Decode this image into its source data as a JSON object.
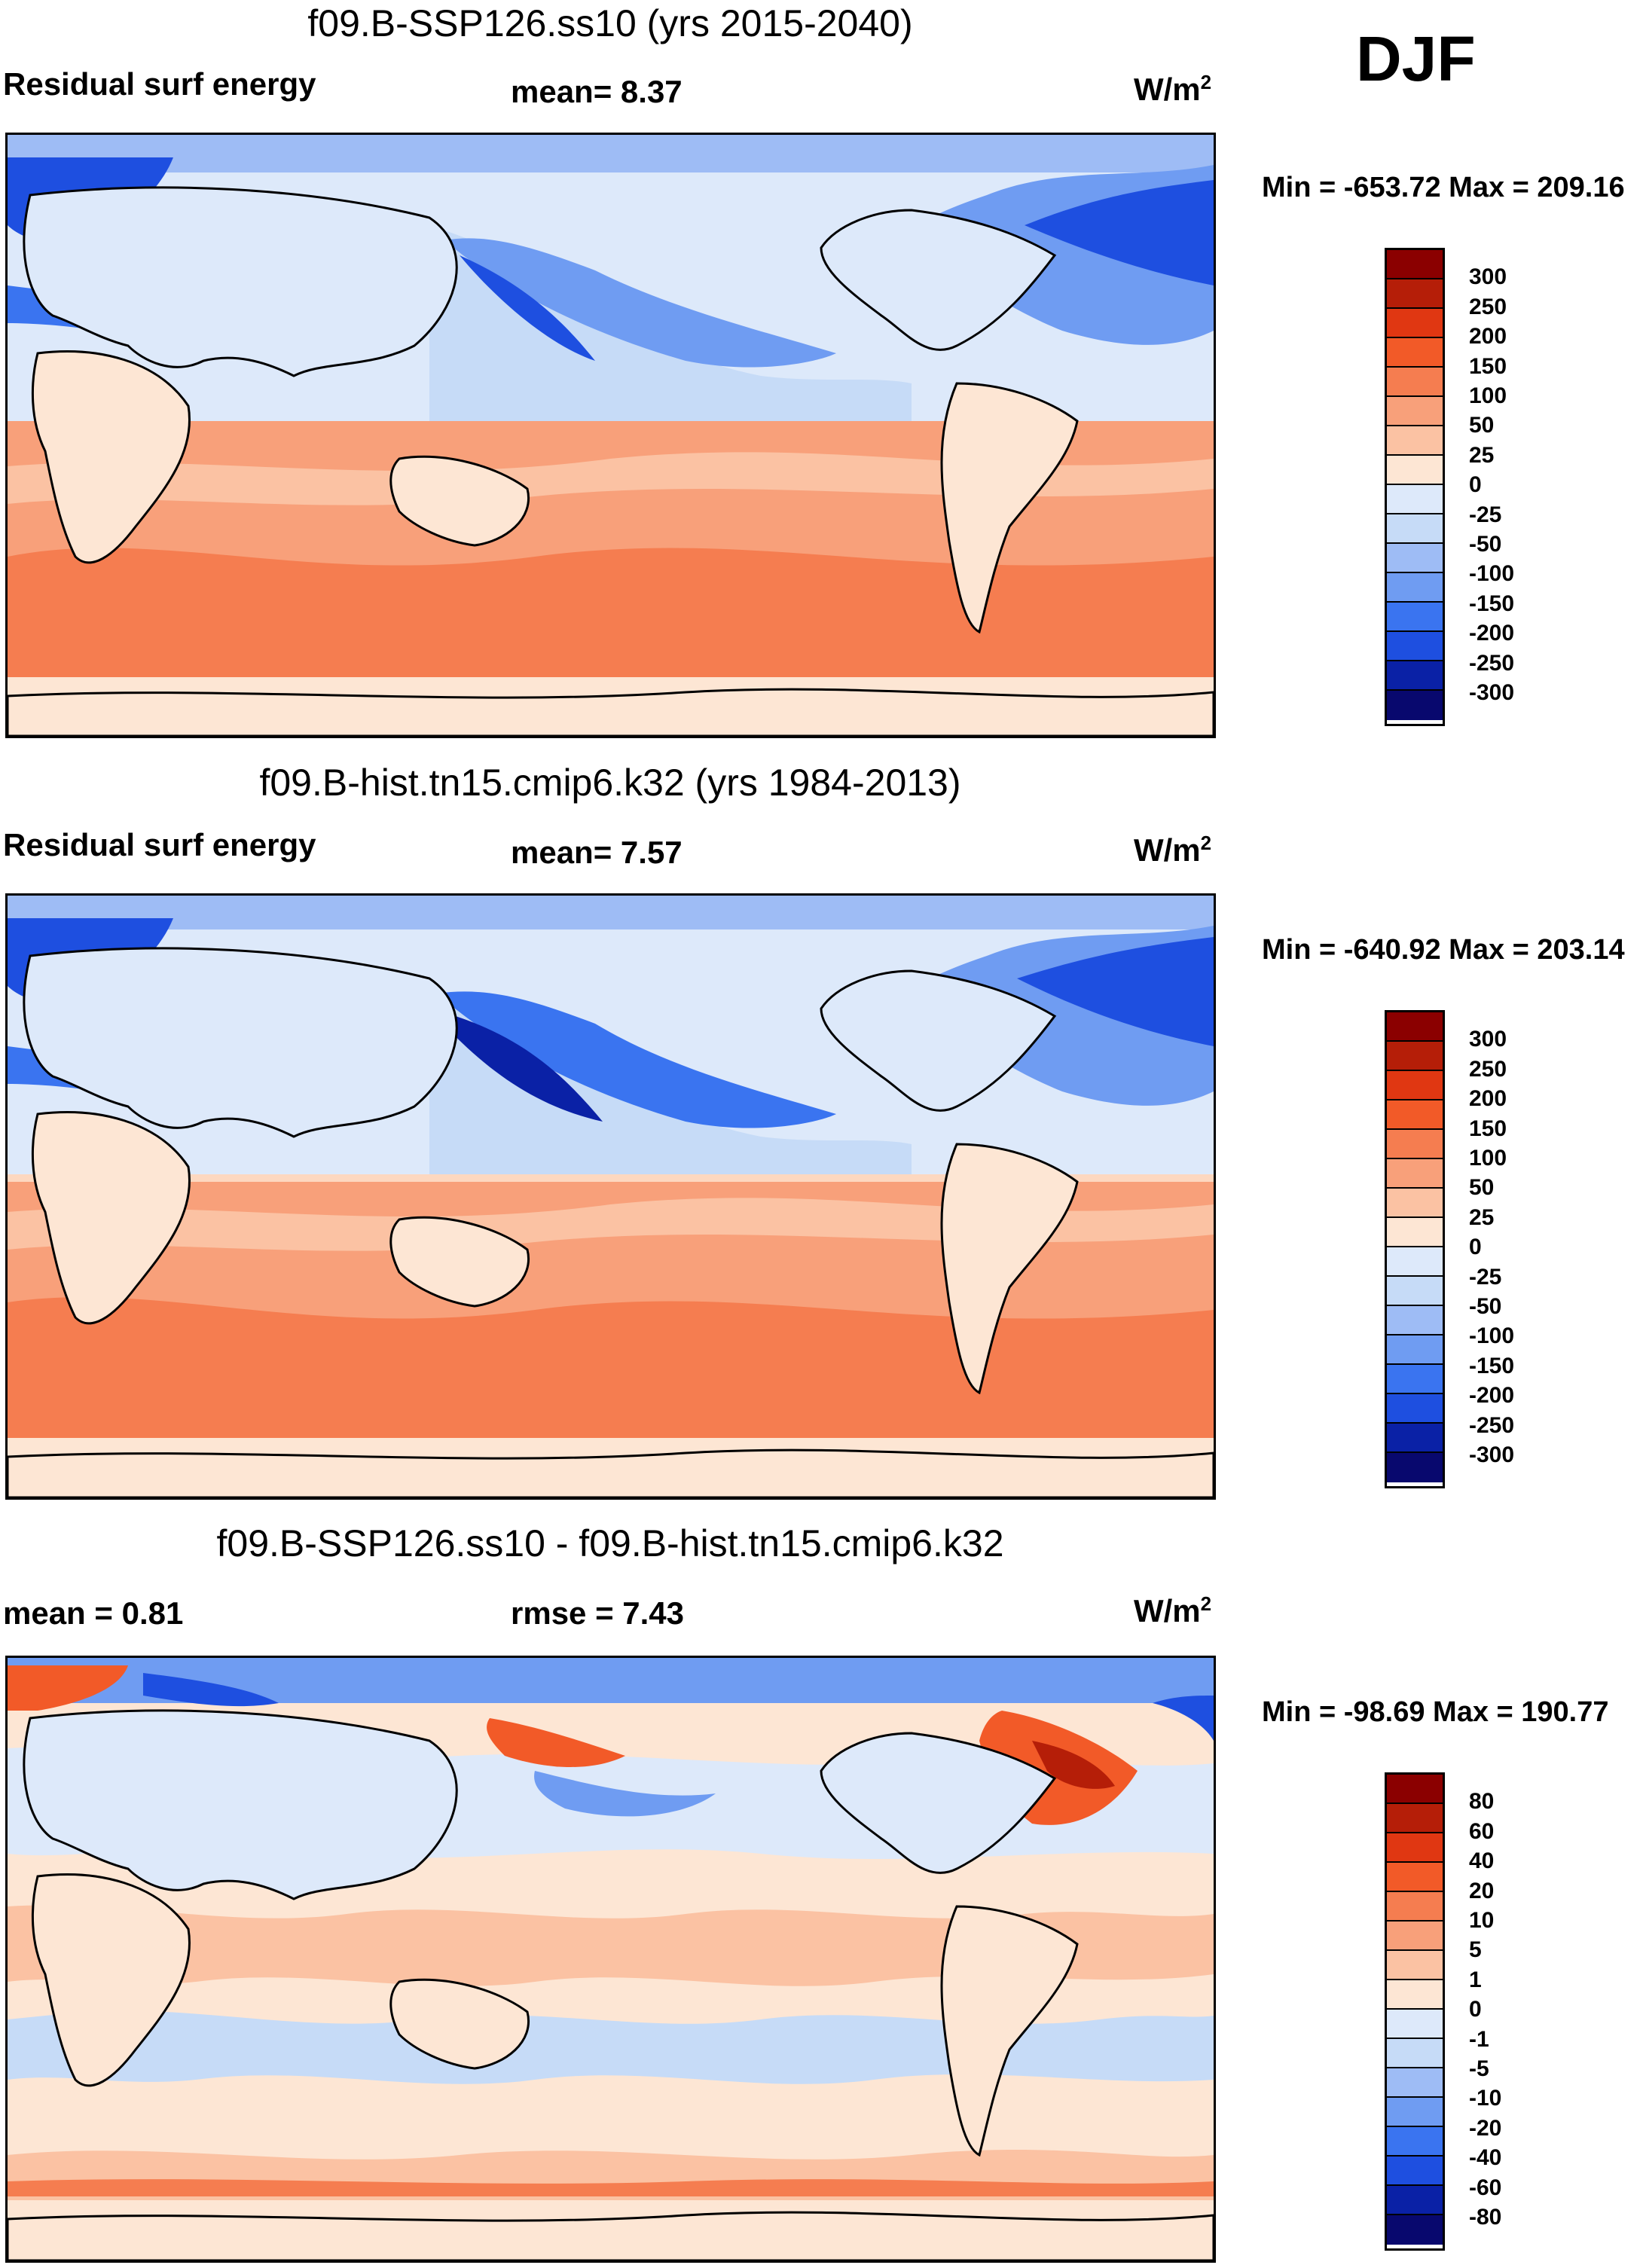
{
  "season": "DJF",
  "palette_abs": [
    "#08086e",
    "#0a21a6",
    "#1e4fe0",
    "#3a74f0",
    "#6f9cf2",
    "#9ebcf5",
    "#c6dbf7",
    "#dde9fa",
    "#fde6d4",
    "#fbc2a3",
    "#f8a07a",
    "#f57d50",
    "#f25a28",
    "#e03712",
    "#b51e08",
    "#8b0000"
  ],
  "palette_diff": [
    "#08086e",
    "#0a21a6",
    "#1e4fe0",
    "#3a74f0",
    "#6f9cf2",
    "#9ebcf5",
    "#c6dbf7",
    "#dde9fa",
    "#fde6d4",
    "#fbc2a3",
    "#f8a07a",
    "#f57d50",
    "#f25a28",
    "#e03712",
    "#b51e08",
    "#8b0000"
  ],
  "panels": [
    {
      "title": "f09.B-SSP126.ss10 (yrs 2015-2040)",
      "left_label": "Residual surf energy",
      "center_label": "mean=   8.37",
      "units": "W/m",
      "units_sup": "2",
      "minmax": "Min = -653.72 Max = 209.16",
      "ticks": [
        "300",
        "250",
        "200",
        "150",
        "100",
        "50",
        "25",
        "0",
        "-25",
        "-50",
        "-100",
        "-150",
        "-200",
        "-250",
        "-300"
      ]
    },
    {
      "title": "f09.B-hist.tn15.cmip6.k32 (yrs 1984-2013)",
      "left_label": "Residual surf energy",
      "center_label": "mean=   7.57",
      "units": "W/m",
      "units_sup": "2",
      "minmax": "Min = -640.92 Max = 203.14",
      "ticks": [
        "300",
        "250",
        "200",
        "150",
        "100",
        "50",
        "25",
        "0",
        "-25",
        "-50",
        "-100",
        "-150",
        "-200",
        "-250",
        "-300"
      ]
    },
    {
      "title": "f09.B-SSP126.ss10 - f09.B-hist.tn15.cmip6.k32",
      "left_label": "mean =   0.81",
      "center_label": "rmse =   7.43",
      "units": "W/m",
      "units_sup": "2",
      "minmax": "Min = -98.69 Max = 190.77",
      "ticks": [
        "80",
        "60",
        "40",
        "20",
        "10",
        "5",
        "1",
        "0",
        "-1",
        "-5",
        "-10",
        "-20",
        "-40",
        "-60",
        "-80"
      ]
    }
  ]
}
